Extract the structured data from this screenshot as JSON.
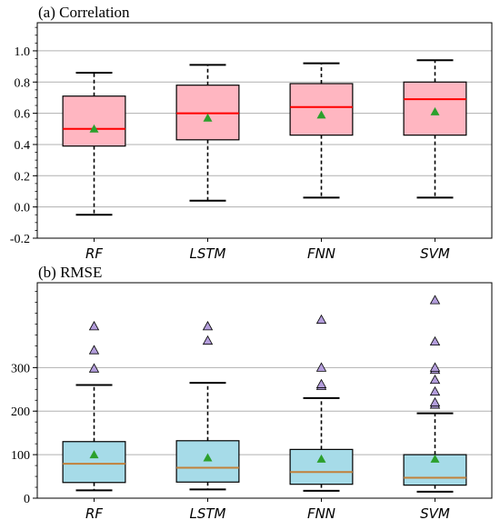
{
  "chart_data": [
    {
      "type": "box",
      "title": "(a) Correlation",
      "categories": [
        "RF",
        "LSTM",
        "FNN",
        "SVM"
      ],
      "ylim": [
        -0.2,
        1.18
      ],
      "yticks": [
        "-0.2",
        "0.0",
        "0.2",
        "0.4",
        "0.6",
        "0.8",
        "1.0"
      ],
      "ytick_values": [
        -0.2,
        0.0,
        0.2,
        0.4,
        0.6,
        0.8,
        1.0
      ],
      "grid": "horizontal",
      "box_color": "#ffb6c1",
      "median_color": "#ff0000",
      "mean_color": "#2ca02c",
      "boxes": [
        {
          "whislo": -0.05,
          "q1": 0.39,
          "median": 0.5,
          "q3": 0.71,
          "whishi": 0.86,
          "mean": 0.5,
          "fliers": []
        },
        {
          "whislo": 0.04,
          "q1": 0.43,
          "median": 0.6,
          "q3": 0.78,
          "whishi": 0.91,
          "mean": 0.57,
          "fliers": []
        },
        {
          "whislo": 0.06,
          "q1": 0.46,
          "median": 0.64,
          "q3": 0.79,
          "whishi": 0.92,
          "mean": 0.59,
          "fliers": []
        },
        {
          "whislo": 0.06,
          "q1": 0.46,
          "median": 0.69,
          "q3": 0.8,
          "whishi": 0.94,
          "mean": 0.61,
          "fliers": []
        }
      ]
    },
    {
      "type": "box",
      "title": "(b) RMSE",
      "categories": [
        "RF",
        "LSTM",
        "FNN",
        "SVM"
      ],
      "ylim": [
        0,
        495
      ],
      "yticks": [
        "0",
        "100",
        "200",
        "300"
      ],
      "ytick_values": [
        0,
        100,
        200,
        300
      ],
      "grid": "horizontal",
      "box_color": "#a6dbe8",
      "median_color": "#c2803a",
      "mean_color": "#2ca02c",
      "flier_color": "#b39ddb",
      "boxes": [
        {
          "whislo": 18,
          "q1": 36,
          "median": 79,
          "q3": 130,
          "whishi": 260,
          "mean": 100,
          "fliers": [
            298,
            340,
            395
          ]
        },
        {
          "whislo": 20,
          "q1": 37,
          "median": 70,
          "q3": 132,
          "whishi": 265,
          "mean": 93,
          "fliers": [
            362,
            395
          ]
        },
        {
          "whislo": 17,
          "q1": 32,
          "median": 60,
          "q3": 112,
          "whishi": 230,
          "mean": 90,
          "fliers": [
            258,
            262,
            300,
            410
          ]
        },
        {
          "whislo": 15,
          "q1": 30,
          "median": 47,
          "q3": 100,
          "whishi": 195,
          "mean": 90,
          "fliers": [
            215,
            220,
            245,
            272,
            295,
            300,
            360,
            455
          ]
        }
      ]
    }
  ]
}
